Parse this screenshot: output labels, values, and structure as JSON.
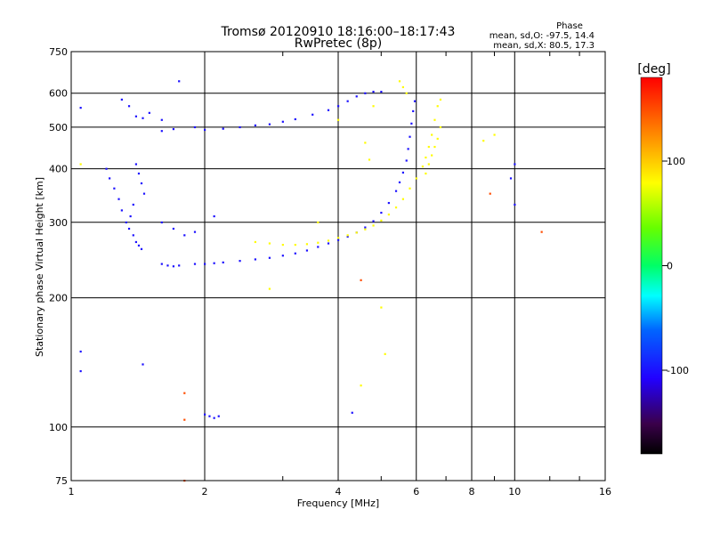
{
  "chart_data": {
    "type": "scatter",
    "title": "Tromsø 20120910 18:16:00–18:17:43",
    "subtitle": "RwPretec (8p)",
    "xlabel": "Frequency [MHz]",
    "ylabel": "Stationary phase Virtual Height [km]",
    "x_scale": "log",
    "y_scale": "log",
    "xlim": [
      1,
      16
    ],
    "ylim": [
      75,
      750
    ],
    "x_ticks": [
      1,
      2,
      4,
      6,
      8,
      10,
      16
    ],
    "x_tick_labels": [
      "1",
      "2",
      "4",
      "6",
      "8",
      "10",
      "16"
    ],
    "y_ticks": [
      75,
      100,
      200,
      300,
      400,
      500,
      600,
      750
    ],
    "y_tick_labels": [
      "75",
      "100",
      "200",
      "300",
      "400",
      "500",
      "600",
      "750"
    ],
    "grid": true,
    "stats": {
      "title": "Phase",
      "line_o": "mean, sd,O: -97.5, 14.4",
      "line_x": "mean, sd,X:  80.5, 17.3"
    },
    "colorbar": {
      "label": "[deg]",
      "range": [
        -180,
        180
      ],
      "ticks": [
        100,
        0,
        -100
      ],
      "tick_labels": [
        "100",
        "0",
        "-100"
      ]
    },
    "series": [
      {
        "mode": "O",
        "phase": -100,
        "points": [
          [
            1.9,
            240
          ],
          [
            2.0,
            240
          ],
          [
            2.1,
            241
          ],
          [
            2.2,
            242
          ],
          [
            2.4,
            244
          ],
          [
            2.6,
            246
          ],
          [
            2.8,
            248
          ],
          [
            3.0,
            251
          ],
          [
            3.2,
            254
          ],
          [
            3.4,
            258
          ],
          [
            3.6,
            263
          ],
          [
            3.8,
            268
          ],
          [
            4.0,
            273
          ],
          [
            4.2,
            278
          ],
          [
            4.4,
            284
          ],
          [
            4.6,
            292
          ],
          [
            4.8,
            302
          ],
          [
            5.0,
            316
          ],
          [
            5.2,
            333
          ],
          [
            5.4,
            355
          ],
          [
            5.5,
            372
          ],
          [
            5.6,
            392
          ],
          [
            5.7,
            418
          ],
          [
            5.75,
            445
          ],
          [
            5.8,
            475
          ],
          [
            5.85,
            510
          ],
          [
            5.9,
            545
          ],
          [
            5.95,
            575
          ],
          [
            5.0,
            605
          ],
          [
            4.8,
            605
          ],
          [
            4.6,
            600
          ],
          [
            4.4,
            590
          ],
          [
            4.2,
            575
          ],
          [
            4.0,
            560
          ],
          [
            3.8,
            548
          ],
          [
            3.5,
            535
          ],
          [
            3.2,
            522
          ],
          [
            3.0,
            515
          ],
          [
            2.8,
            508
          ],
          [
            2.6,
            505
          ],
          [
            2.4,
            500
          ],
          [
            2.2,
            496
          ],
          [
            2.0,
            493
          ],
          [
            1.9,
            500
          ],
          [
            1.7,
            495
          ],
          [
            1.6,
            490
          ],
          [
            1.5,
            540
          ],
          [
            1.6,
            520
          ],
          [
            1.05,
            555
          ],
          [
            1.3,
            580
          ],
          [
            1.35,
            560
          ],
          [
            1.4,
            530
          ],
          [
            1.45,
            525
          ],
          [
            1.2,
            400
          ],
          [
            1.22,
            380
          ],
          [
            1.25,
            360
          ],
          [
            1.28,
            340
          ],
          [
            1.3,
            320
          ],
          [
            1.33,
            300
          ],
          [
            1.35,
            290
          ],
          [
            1.38,
            280
          ],
          [
            1.4,
            270
          ],
          [
            1.42,
            265
          ],
          [
            1.44,
            260
          ],
          [
            1.4,
            410
          ],
          [
            1.42,
            390
          ],
          [
            1.44,
            370
          ],
          [
            1.46,
            350
          ],
          [
            1.38,
            330
          ],
          [
            1.36,
            310
          ],
          [
            1.6,
            240
          ],
          [
            1.65,
            238
          ],
          [
            1.7,
            237
          ],
          [
            1.75,
            238
          ],
          [
            1.6,
            300
          ],
          [
            1.7,
            290
          ],
          [
            1.8,
            280
          ],
          [
            1.9,
            285
          ],
          [
            2.1,
            310
          ],
          [
            1.75,
            640
          ],
          [
            1.45,
            140
          ],
          [
            1.05,
            150
          ],
          [
            1.05,
            135
          ],
          [
            2.0,
            107
          ],
          [
            2.05,
            106
          ],
          [
            2.1,
            105
          ],
          [
            2.15,
            106
          ],
          [
            10,
            410
          ],
          [
            10,
            330
          ],
          [
            4.3,
            108
          ],
          [
            9.8,
            380
          ]
        ]
      },
      {
        "mode": "X",
        "phase": 80,
        "points": [
          [
            2.6,
            270
          ],
          [
            2.8,
            268
          ],
          [
            3.0,
            266
          ],
          [
            3.2,
            266
          ],
          [
            3.4,
            267
          ],
          [
            3.6,
            269
          ],
          [
            3.8,
            272
          ],
          [
            4.0,
            276
          ],
          [
            4.2,
            280
          ],
          [
            4.4,
            284
          ],
          [
            4.6,
            289
          ],
          [
            4.8,
            295
          ],
          [
            5.0,
            303
          ],
          [
            5.2,
            313
          ],
          [
            5.4,
            325
          ],
          [
            5.6,
            340
          ],
          [
            5.8,
            360
          ],
          [
            6.0,
            380
          ],
          [
            6.2,
            405
          ],
          [
            6.3,
            425
          ],
          [
            6.4,
            450
          ],
          [
            6.5,
            480
          ],
          [
            6.6,
            520
          ],
          [
            6.7,
            560
          ],
          [
            6.8,
            580
          ],
          [
            6.3,
            390
          ],
          [
            6.4,
            410
          ],
          [
            6.5,
            430
          ],
          [
            6.6,
            450
          ],
          [
            6.7,
            470
          ],
          [
            6.8,
            500
          ],
          [
            5.5,
            640
          ],
          [
            5.6,
            620
          ],
          [
            5.7,
            600
          ],
          [
            4.6,
            460
          ],
          [
            4.7,
            420
          ],
          [
            4.8,
            560
          ],
          [
            4.0,
            520
          ],
          [
            5.0,
            190
          ],
          [
            5.1,
            148
          ],
          [
            4.5,
            125
          ],
          [
            2.8,
            210
          ],
          [
            3.6,
            300
          ],
          [
            1.05,
            410
          ],
          [
            8.5,
            465
          ],
          [
            9.0,
            480
          ]
        ]
      },
      {
        "mode": "scattered",
        "phase": 150,
        "points": [
          [
            1.8,
            120
          ],
          [
            1.8,
            104
          ],
          [
            4.5,
            220
          ],
          [
            11.5,
            285
          ],
          [
            1.8,
            75
          ],
          [
            8.8,
            350
          ]
        ]
      }
    ]
  }
}
